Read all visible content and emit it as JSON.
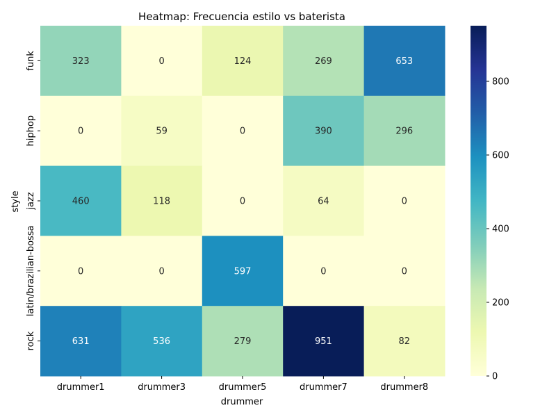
{
  "chart_data": {
    "type": "heatmap",
    "title": "Heatmap: Frecuencia estilo vs baterista",
    "xlabel": "drummer",
    "ylabel": "style",
    "x_categories": [
      "drummer1",
      "drummer3",
      "drummer5",
      "drummer7",
      "drummer8"
    ],
    "y_categories": [
      "funk",
      "hiphop",
      "jazz",
      "latin/brazilian-bossa",
      "rock"
    ],
    "values": [
      [
        323,
        0,
        124,
        269,
        653
      ],
      [
        0,
        59,
        0,
        390,
        296
      ],
      [
        460,
        118,
        0,
        64,
        0
      ],
      [
        0,
        0,
        597,
        0,
        0
      ],
      [
        631,
        536,
        279,
        951,
        82
      ]
    ],
    "colormap": "YlGnBu",
    "vmin": 0,
    "vmax": 951,
    "colorbar_ticks": [
      0,
      200,
      400,
      600,
      800
    ],
    "annotations": true
  }
}
